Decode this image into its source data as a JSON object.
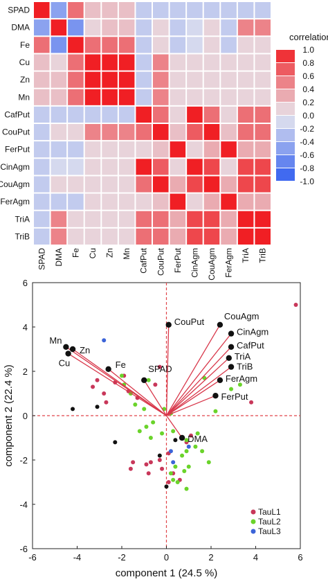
{
  "chart_data": [
    {
      "type": "heatmap",
      "legend_title": "correlation",
      "legend_placement": "right",
      "legend_ticks": [
        1.0,
        0.8,
        0.6,
        0.4,
        0.2,
        0.0,
        -0.2,
        -0.4,
        -0.6,
        -0.8,
        -1.0
      ],
      "legend_tick_labels": [
        "1.0",
        "0.8",
        "0.6",
        "0.4",
        "0.2",
        "0.0",
        "-0.2",
        "-0.4",
        "-0.6",
        "-0.8",
        "-1.0"
      ],
      "color_scale": {
        "low": "#2f5cf0",
        "mid": "#e7e7ee",
        "high": "#f01f24"
      },
      "row_labels": [
        "SPAD",
        "DMA",
        "Fe",
        "Cu",
        "Zn",
        "Mn",
        "CafPut",
        "CouPut",
        "FerPut",
        "CinAgm",
        "CouAgm",
        "FerAgm",
        "TriA",
        "TriB"
      ],
      "col_labels": [
        "SPAD",
        "DMA",
        "Fe",
        "Cu",
        "Zn",
        "Mn",
        "CafPut",
        "CouPut",
        "FerPut",
        "CinAgm",
        "CouAgm",
        "FerAgm",
        "TriA",
        "TriB"
      ],
      "values": [
        [
          1.0,
          -0.5,
          0.6,
          0.2,
          0.2,
          0.2,
          -0.2,
          -0.2,
          -0.2,
          -0.2,
          -0.2,
          -0.2,
          -0.2,
          -0.2
        ],
        [
          -0.5,
          1.0,
          -0.6,
          0.1,
          0.2,
          0.2,
          -0.2,
          0.1,
          -0.2,
          -0.1,
          0.1,
          -0.2,
          0.5,
          0.5
        ],
        [
          0.6,
          -0.6,
          1.0,
          0.6,
          0.6,
          0.6,
          -0.2,
          0.1,
          -0.2,
          -0.1,
          0.1,
          -0.2,
          0.1,
          0.1
        ],
        [
          0.2,
          0.1,
          0.6,
          1.0,
          1.0,
          1.0,
          -0.2,
          0.5,
          0.1,
          0.1,
          0.1,
          0.1,
          0.1,
          0.1
        ],
        [
          0.2,
          0.2,
          0.6,
          1.0,
          1.0,
          1.0,
          -0.2,
          0.5,
          0.1,
          0.1,
          0.1,
          0.1,
          0.1,
          0.1
        ],
        [
          0.2,
          0.2,
          0.6,
          1.0,
          1.0,
          1.0,
          -0.2,
          0.5,
          0.1,
          0.1,
          0.1,
          0.1,
          0.1,
          0.1
        ],
        [
          -0.2,
          -0.2,
          -0.2,
          -0.2,
          -0.2,
          -0.2,
          1.0,
          0.6,
          0.1,
          1.0,
          0.6,
          0.1,
          0.6,
          0.6
        ],
        [
          -0.2,
          0.1,
          0.1,
          0.5,
          0.5,
          0.5,
          0.6,
          1.0,
          0.2,
          0.7,
          1.0,
          0.2,
          0.6,
          0.6
        ],
        [
          -0.2,
          -0.2,
          -0.2,
          0.1,
          0.1,
          0.1,
          0.1,
          0.2,
          1.0,
          0.1,
          0.3,
          1.0,
          0.3,
          0.3
        ],
        [
          -0.2,
          -0.1,
          -0.1,
          0.1,
          0.1,
          0.1,
          1.0,
          0.7,
          0.1,
          1.0,
          0.8,
          0.1,
          0.8,
          0.8
        ],
        [
          -0.2,
          0.1,
          0.1,
          0.1,
          0.1,
          0.1,
          0.6,
          1.0,
          0.3,
          0.8,
          1.0,
          0.3,
          0.8,
          0.8
        ],
        [
          -0.2,
          -0.2,
          -0.2,
          0.1,
          0.1,
          0.1,
          0.1,
          0.2,
          1.0,
          0.1,
          0.3,
          1.0,
          0.3,
          0.3
        ],
        [
          -0.2,
          0.5,
          0.1,
          0.1,
          0.1,
          0.1,
          0.6,
          0.6,
          0.3,
          0.8,
          0.8,
          0.3,
          1.0,
          1.0
        ],
        [
          -0.2,
          0.5,
          0.1,
          0.1,
          0.1,
          0.1,
          0.6,
          0.6,
          0.3,
          0.8,
          0.8,
          0.3,
          1.0,
          1.0
        ]
      ]
    },
    {
      "type": "scatter",
      "subtype": "pca-biplot",
      "xlabel": "component 1 (24.5 %)",
      "ylabel": "component 2 (22.4 %)",
      "xlim": [
        -6,
        6
      ],
      "ylim": [
        -6,
        6
      ],
      "x_ticks": [
        -6,
        -4,
        -2,
        0,
        2,
        4,
        6
      ],
      "y_ticks": [
        -6,
        -4,
        -2,
        0,
        2,
        4,
        6
      ],
      "x_tick_labels": [
        "-6",
        "-4",
        "-2",
        "0",
        "2",
        "4",
        "6"
      ],
      "y_tick_labels": [
        "-6",
        "-4",
        "-2",
        "0",
        "2",
        "4",
        "6"
      ],
      "grid": false,
      "reference_lines": [
        0,
        0
      ],
      "legend_placement": "bottom-right",
      "vectors": [
        {
          "label": "Mn",
          "x": -4.5,
          "y": 3.1
        },
        {
          "label": "Zn",
          "x": -4.2,
          "y": 3.0
        },
        {
          "label": "Cu",
          "x": -4.4,
          "y": 2.8
        },
        {
          "label": "Fe",
          "x": -2.6,
          "y": 2.1
        },
        {
          "label": "SPAD",
          "x": -1.0,
          "y": 1.6
        },
        {
          "label": "CouPut",
          "x": 0.1,
          "y": 4.1
        },
        {
          "label": "CouAgm",
          "x": 2.4,
          "y": 4.1
        },
        {
          "label": "CinAgm",
          "x": 2.9,
          "y": 3.7
        },
        {
          "label": "CafPut",
          "x": 2.9,
          "y": 3.1
        },
        {
          "label": "TriA",
          "x": 2.8,
          "y": 2.6
        },
        {
          "label": "TriB",
          "x": 2.9,
          "y": 2.2
        },
        {
          "label": "FerAgm",
          "x": 2.4,
          "y": 1.6
        },
        {
          "label": "FerPut",
          "x": 2.2,
          "y": 0.9
        },
        {
          "label": "DMA",
          "x": 0.7,
          "y": -1.0
        }
      ],
      "series": [
        {
          "name": "TauL1",
          "color": "#c8375a",
          "points": [
            [
              5.8,
              5.0
            ],
            [
              -3.1,
              1.6
            ],
            [
              -3.3,
              1.3
            ],
            [
              -2.8,
              1.0
            ],
            [
              -2.7,
              0.6
            ],
            [
              -1.7,
              1.1
            ],
            [
              -1.3,
              0.8
            ],
            [
              -1.9,
              1.8
            ],
            [
              -2.3,
              1.5
            ],
            [
              -0.5,
              1.4
            ],
            [
              -0.3,
              2.2
            ],
            [
              3.8,
              0.6
            ],
            [
              -1.5,
              -2.1
            ],
            [
              -1.6,
              -2.4
            ],
            [
              -0.7,
              -2.1
            ],
            [
              -0.8,
              -2.6
            ],
            [
              -0.2,
              -2.4
            ],
            [
              0.1,
              -1.7
            ],
            [
              0.3,
              -2.6
            ],
            [
              0.1,
              -3.0
            ],
            [
              -0.3,
              -2.0
            ],
            [
              0.6,
              -2.9
            ],
            [
              0.9,
              -1.2
            ],
            [
              1.1,
              -0.9
            ],
            [
              -0.9,
              -2.2
            ]
          ]
        },
        {
          "name": "TauL2",
          "color": "#6ad32a",
          "points": [
            [
              -2.0,
              1.8
            ],
            [
              -1.9,
              1.4
            ],
            [
              -1.6,
              1.0
            ],
            [
              -1.4,
              0.5
            ],
            [
              -1.0,
              0.3
            ],
            [
              -0.8,
              1.6
            ],
            [
              -0.1,
              0.3
            ],
            [
              0.2,
              0.1
            ],
            [
              -1.2,
              -0.7
            ],
            [
              -0.9,
              -0.5
            ],
            [
              -0.7,
              -1.0
            ],
            [
              -0.2,
              -0.8
            ],
            [
              0.3,
              -0.7
            ],
            [
              0.9,
              -1.1
            ],
            [
              0.9,
              -1.6
            ],
            [
              0.7,
              -1.8
            ],
            [
              0.4,
              -2.3
            ],
            [
              0.2,
              -2.6
            ],
            [
              0.3,
              -2.9
            ],
            [
              0.5,
              -3.0
            ],
            [
              0.8,
              -2.5
            ],
            [
              0.9,
              -3.3
            ],
            [
              1.0,
              -2.3
            ],
            [
              1.6,
              -1.6
            ],
            [
              1.9,
              -2.1
            ],
            [
              2.2,
              0.2
            ],
            [
              1.7,
              1.7
            ],
            [
              3.3,
              1.4
            ],
            [
              2.9,
              1.2
            ],
            [
              1.4,
              -0.8
            ],
            [
              1.3,
              -1.4
            ],
            [
              -0.6,
              -0.3
            ]
          ]
        },
        {
          "name": "TauL3",
          "color": "#3c64d8",
          "points": [
            [
              -2.8,
              3.4
            ],
            [
              1.0,
              -1.4
            ],
            [
              0.2,
              -1.6
            ],
            [
              0.3,
              -2.1
            ]
          ]
        },
        {
          "color": "#111111",
          "points": [
            [
              -4.2,
              0.3
            ],
            [
              -2.3,
              -1.2
            ],
            [
              -3.1,
              0.4
            ],
            [
              0.0,
              -3.2
            ],
            [
              0.4,
              -1.1
            ],
            [
              -0.3,
              -1.8
            ]
          ]
        }
      ],
      "legend": [
        {
          "name": "TauL1",
          "color": "#c8375a"
        },
        {
          "name": "TauL2",
          "color": "#6ad32a"
        },
        {
          "name": "TauL3",
          "color": "#3c64d8"
        }
      ],
      "arrow_color": "#d8374a",
      "reference_line_color": "#e0454a"
    }
  ]
}
